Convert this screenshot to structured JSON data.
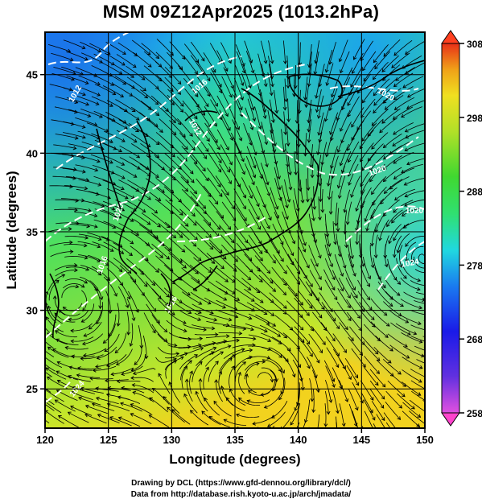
{
  "title": "MSM 09Z12Apr2025 (1013.2hPa)",
  "x_axis": {
    "label": "Longitude (degrees)",
    "range": [
      120,
      150
    ],
    "ticks": [
      120,
      125,
      130,
      135,
      140,
      145,
      150
    ]
  },
  "y_axis": {
    "label": "Latitude  (degrees)",
    "range": [
      22.5,
      47.7
    ],
    "ticks": [
      25,
      30,
      35,
      40,
      45
    ]
  },
  "colorbar": {
    "range": [
      258,
      308
    ],
    "labels": [
      308,
      298,
      288,
      278,
      268,
      258
    ],
    "over_color": "#ff4020",
    "under_color": "#ff44cc"
  },
  "contour_labels": [
    "1012",
    "1016",
    "1012",
    "1016",
    "1020",
    "1020",
    "1020",
    "1016",
    "1020",
    "1024",
    "1024"
  ],
  "credits": {
    "line1": "Drawing by DCL (https://www.gfd-dennou.org/library/dcl/)",
    "line2": "Data from http://database.rish.kyoto-u.ac.jp/arch/jmadata/"
  }
}
